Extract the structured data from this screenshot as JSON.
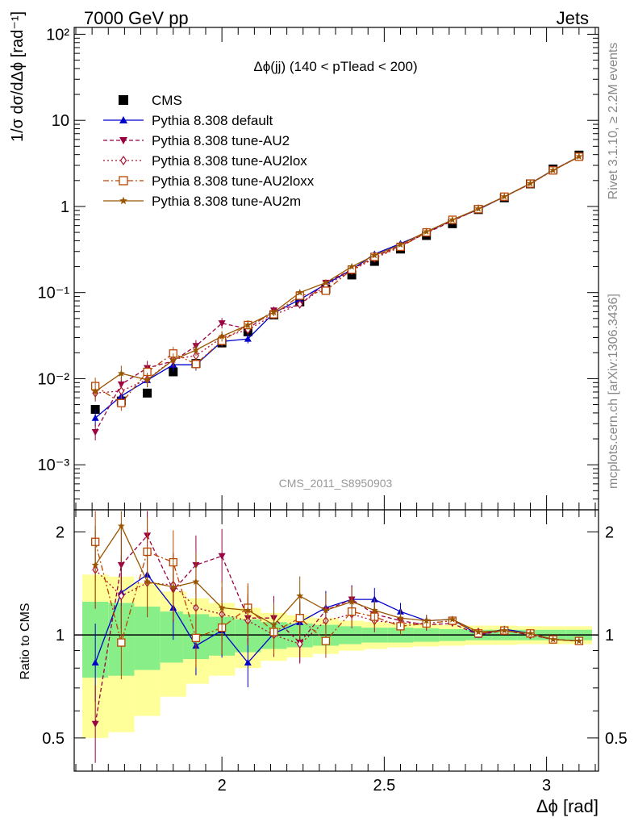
{
  "header": {
    "left": "7000 GeV pp",
    "right": "Jets"
  },
  "side_labels": {
    "rivet": "Rivet 3.1.10, ≥ 2.2M events",
    "mcplots": "mcplots.cern.ch [arXiv:1306.3436]"
  },
  "watermark": "CMS_2011_S8950903",
  "chart_data": [
    {
      "type": "line",
      "title": "Δϕ(jj) (140 < pTlead <  200)",
      "ylabel": "1/σ dσ/dΔϕ [rad⁻¹]",
      "xlabel": "Δϕ [rad]",
      "yscale": "log",
      "xlim": [
        1.545,
        3.16
      ],
      "ylim": [
        0.0003,
        120
      ],
      "y_ticks": [
        "10⁻³",
        "10⁻²",
        "10⁻¹",
        "1",
        "10",
        "10²"
      ],
      "x_ticks": [
        "2",
        "2.5",
        "3"
      ],
      "legend_position": "top-left",
      "x": [
        1.61,
        1.69,
        1.77,
        1.85,
        1.92,
        2.0,
        2.08,
        2.16,
        2.24,
        2.32,
        2.4,
        2.47,
        2.55,
        2.63,
        2.71,
        2.79,
        2.87,
        2.95,
        3.02,
        3.1
      ],
      "series": [
        {
          "name": "CMS",
          "color": "#000000",
          "marker": "square-filled",
          "dash": "none",
          "values": [
            0.0044,
            0.0055,
            0.0068,
            0.012,
            0.015,
            0.026,
            0.035,
            0.055,
            0.078,
            0.11,
            0.16,
            0.23,
            0.32,
            0.46,
            0.63,
            0.92,
            1.26,
            1.83,
            2.72,
            3.95
          ]
        },
        {
          "name": "Pythia 8.308 default",
          "color": "#0000cc",
          "marker": "triangle-up-filled",
          "dash": "none",
          "values": [
            0.0035,
            0.0063,
            0.0096,
            0.0145,
            0.0145,
            0.027,
            0.029,
            0.058,
            0.083,
            0.125,
            0.185,
            0.28,
            0.37,
            0.5,
            0.7,
            0.92,
            1.3,
            1.85,
            2.65,
            3.8
          ]
        },
        {
          "name": "Pythia 8.308 tune-AU2",
          "color": "#990044",
          "marker": "triangle-down-filled",
          "dash": "5,3",
          "values": [
            0.0024,
            0.0086,
            0.0133,
            0.016,
            0.024,
            0.044,
            0.038,
            0.062,
            0.072,
            0.13,
            0.185,
            0.26,
            0.35,
            0.49,
            0.68,
            0.93,
            1.3,
            1.83,
            2.63,
            3.78
          ]
        },
        {
          "name": "Pythia 8.308 tune-AU2lox",
          "color": "#aa1133",
          "marker": "diamond-open",
          "dash": "2,3",
          "values": [
            0.0068,
            0.0072,
            0.0098,
            0.0168,
            0.0185,
            0.03,
            0.037,
            0.055,
            0.073,
            0.12,
            0.18,
            0.25,
            0.34,
            0.5,
            0.69,
            0.94,
            1.29,
            1.83,
            2.63,
            3.78
          ]
        },
        {
          "name": "Pythia 8.308 tune-AU2loxx",
          "color": "#bb4400",
          "marker": "square-open",
          "dash": "7,3,2,3",
          "values": [
            0.0082,
            0.0052,
            0.012,
            0.0196,
            0.0148,
            0.0275,
            0.042,
            0.056,
            0.092,
            0.105,
            0.185,
            0.26,
            0.34,
            0.5,
            0.7,
            0.93,
            1.3,
            1.84,
            2.62,
            3.78
          ]
        },
        {
          "name": "Pythia 8.308 tune-AU2m",
          "color": "#995500",
          "marker": "star-filled",
          "dash": "none",
          "values": [
            0.0071,
            0.0115,
            0.0097,
            0.0165,
            0.0215,
            0.031,
            0.042,
            0.059,
            0.1,
            0.13,
            0.2,
            0.27,
            0.36,
            0.51,
            0.7,
            0.94,
            1.3,
            1.85,
            2.63,
            3.8
          ]
        }
      ]
    },
    {
      "type": "line",
      "ylabel": "Ratio to CMS",
      "xlabel": "Δϕ [rad]",
      "yscale": "log",
      "ylim": [
        0.4,
        2.32
      ],
      "y_ticks": [
        "0.5",
        "1",
        "2"
      ],
      "x": [
        1.61,
        1.69,
        1.77,
        1.85,
        1.92,
        2.0,
        2.08,
        2.16,
        2.24,
        2.32,
        2.4,
        2.47,
        2.55,
        2.63,
        2.71,
        2.79,
        2.87,
        2.95,
        3.02,
        3.1
      ],
      "band_inner": [
        0.25,
        0.24,
        0.21,
        0.17,
        0.15,
        0.13,
        0.11,
        0.09,
        0.08,
        0.07,
        0.06,
        0.05,
        0.05,
        0.045,
        0.04,
        0.035,
        0.035,
        0.035,
        0.035,
        0.035
      ],
      "band_outer": [
        0.5,
        0.48,
        0.42,
        0.34,
        0.28,
        0.24,
        0.2,
        0.16,
        0.14,
        0.12,
        0.1,
        0.09,
        0.08,
        0.075,
        0.07,
        0.065,
        0.065,
        0.06,
        0.06,
        0.06
      ],
      "series": [
        {
          "name": "Pythia 8.308 default",
          "values": [
            0.83,
            1.33,
            1.5,
            1.2,
            0.93,
            1.03,
            0.83,
            1.01,
            1.09,
            1.2,
            1.27,
            1.27,
            1.17,
            1.1,
            1.11,
            1.0,
            1.04,
            1.01,
            0.97,
            0.96
          ]
        },
        {
          "name": "Pythia 8.308 tune-AU2",
          "values": [
            0.55,
            1.6,
            1.95,
            1.35,
            1.6,
            1.7,
            1.12,
            1.12,
            0.95,
            1.18,
            1.27,
            1.15,
            1.1,
            1.07,
            1.08,
            1.0,
            1.03,
            1.0,
            0.97,
            0.96
          ]
        },
        {
          "name": "Pythia 8.308 tune-AU2lox",
          "values": [
            1.55,
            1.3,
            1.42,
            1.4,
            1.2,
            1.15,
            1.1,
            1.0,
            0.94,
            1.1,
            1.15,
            1.1,
            1.08,
            1.08,
            1.1,
            1.02,
            1.03,
            1.0,
            0.97,
            0.96
          ]
        },
        {
          "name": "Pythia 8.308 tune-AU2loxx",
          "values": [
            1.87,
            0.95,
            1.75,
            1.63,
            0.98,
            1.05,
            1.2,
            1.02,
            1.12,
            0.96,
            1.17,
            1.13,
            1.06,
            1.08,
            1.1,
            1.01,
            1.03,
            1.01,
            0.97,
            0.96
          ]
        },
        {
          "name": "Pythia 8.308 tune-AU2m",
          "values": [
            1.6,
            2.08,
            1.43,
            1.38,
            1.43,
            1.2,
            1.18,
            1.07,
            1.3,
            1.18,
            1.25,
            1.18,
            1.12,
            1.1,
            1.11,
            1.02,
            1.03,
            1.01,
            0.97,
            0.96
          ]
        }
      ]
    }
  ]
}
